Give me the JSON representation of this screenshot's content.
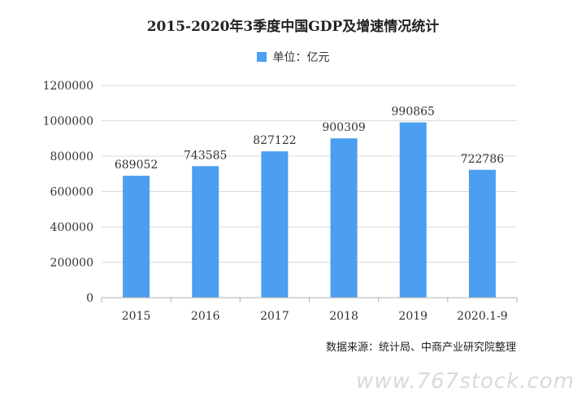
{
  "chart_data": {
    "type": "bar",
    "title": "2015-2020年3季度中国GDP及增速情况统计",
    "legend": [
      {
        "name": "单位：亿元",
        "color": "#4b9ef0"
      }
    ],
    "categories": [
      "2015",
      "2016",
      "2017",
      "2018",
      "2019",
      "2020.1-9"
    ],
    "series": [
      {
        "name": "单位：亿元",
        "values": [
          689052,
          743585,
          827122,
          900309,
          990865,
          722786
        ]
      }
    ],
    "ylim": [
      0,
      1200000
    ],
    "yticks": [
      "0",
      "200000",
      "400000",
      "600000",
      "800000",
      "1000000",
      "1200000"
    ],
    "grid": true,
    "legend_position": "top",
    "bar_color": "#4b9ef0"
  },
  "source_text": "数据来源：统计局、中商产业研究院整理",
  "watermark_text": "www.767stock.com"
}
